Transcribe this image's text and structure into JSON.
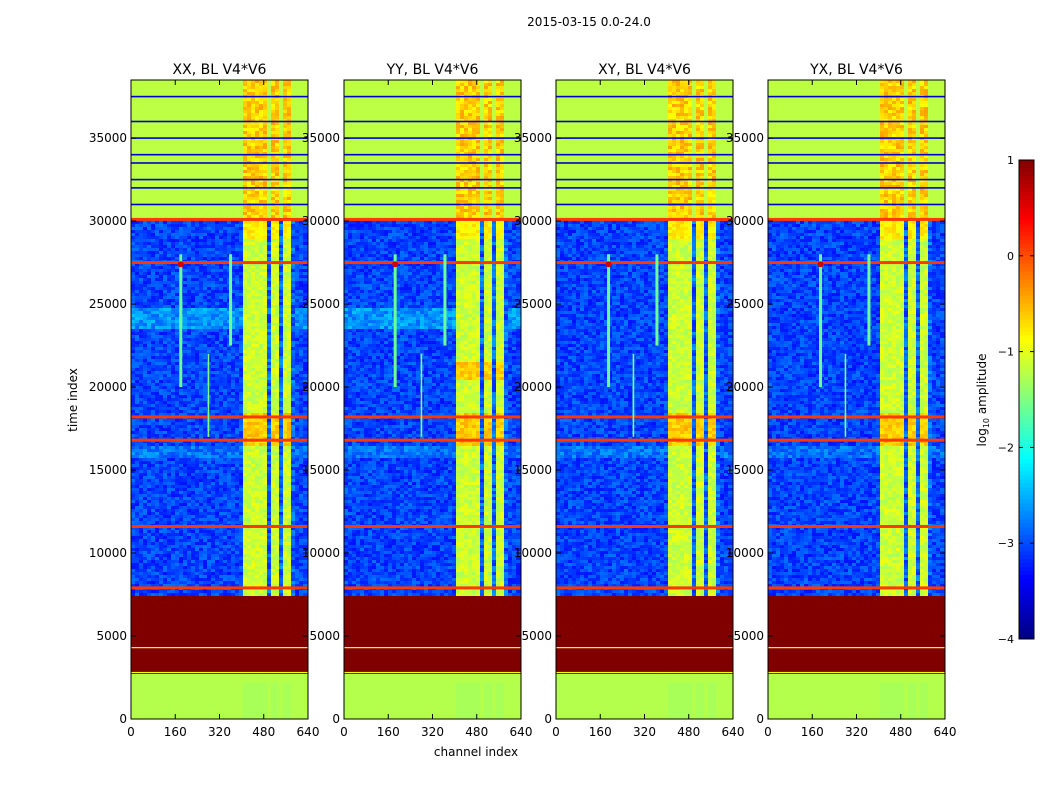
{
  "chart_data": {
    "type": "heatmap",
    "suptitle": "2015-03-15 0.0-24.0",
    "xlabel": "channel index",
    "ylabel": "time index",
    "xlim": [
      0,
      640
    ],
    "ylim": [
      0,
      38500
    ],
    "xticks": [
      0,
      160,
      320,
      480,
      640
    ],
    "yticks": [
      0,
      5000,
      10000,
      15000,
      20000,
      25000,
      30000,
      35000
    ],
    "panels": [
      {
        "title": "XX, BL V4*V6",
        "lines": {
          "channel_a": 180,
          "channel_b": 360,
          "line_280": true
        }
      },
      {
        "title": "YY, BL V4*V6",
        "lines": {
          "channel_a": 185,
          "channel_b": 365,
          "line_280": true
        }
      },
      {
        "title": "XY, BL V4*V6",
        "lines": {
          "channel_a": 190,
          "channel_b": 365,
          "line_280": true
        }
      },
      {
        "title": "YX, BL V4*V6",
        "lines": {
          "channel_a": 190,
          "channel_b": 365,
          "line_280": true
        }
      }
    ],
    "structure": {
      "channel_band": [
        405,
        600
      ],
      "channel_gaps": [
        [
          445,
          455
        ],
        [
          490,
          500
        ],
        [
          540,
          550
        ],
        [
          585,
          595
        ]
      ],
      "low_rows": [
        0,
        2200
      ],
      "saturated_rows": [
        2700,
        7500
      ],
      "noisy_segments": [
        [
          8000,
          30000
        ]
      ],
      "flagged_rows": [
        [
          30200,
          38500
        ]
      ],
      "orange_rows": [
        7900,
        11600,
        16800,
        18200,
        27500,
        30100
      ],
      "bright_point_row": 27400
    },
    "colorbar": {
      "label": "log10 amplitude",
      "label_prefix": "log",
      "label_sub": "10",
      "label_suffix": " amplitude",
      "min": -4,
      "max": 1,
      "ticks": [
        -4,
        -3,
        -2,
        -1,
        0,
        1
      ],
      "tick_labels": [
        "−4",
        "−3",
        "−2",
        "−1",
        "0",
        "1"
      ],
      "colormap": "jet"
    }
  }
}
